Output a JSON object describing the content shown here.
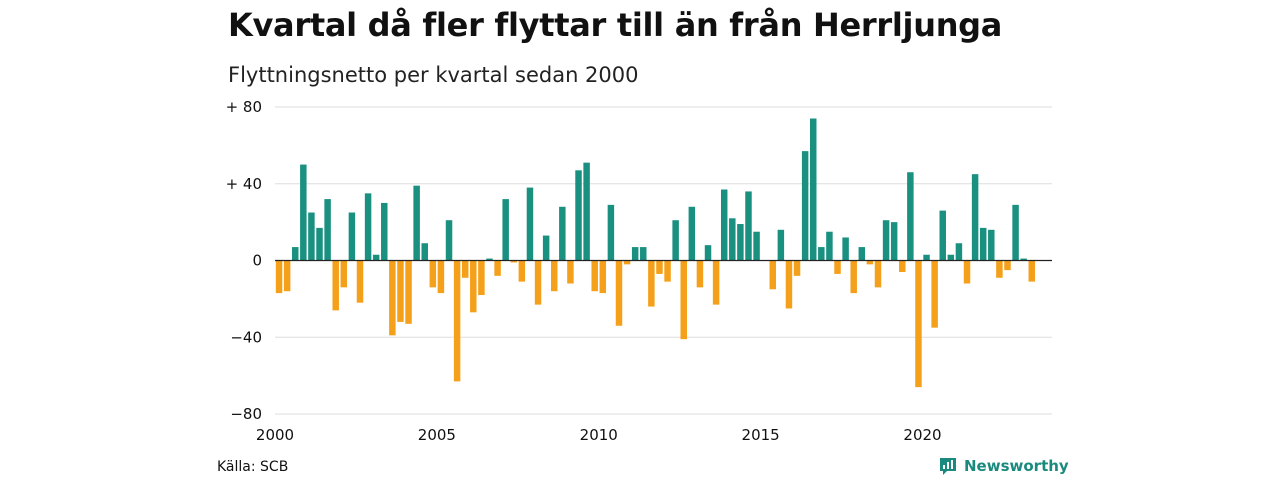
{
  "title": "Kvartal då fler flyttar till än från Herrljunga",
  "subtitle": "Flyttningsnetto per kvartal sedan 2000",
  "source": "Källa: SCB",
  "brand": "Newsworthy",
  "colors": {
    "positive": "#1a9081",
    "negative": "#f5a01a",
    "grid": "#dddddd",
    "zero_line": "#222222",
    "brand": "#1a8a7e"
  },
  "chart_data": {
    "type": "bar",
    "title": "Kvartal då fler flyttar till än från Herrljunga",
    "subtitle": "Flyttningsnetto per kvartal sedan 2000",
    "xlabel": "",
    "ylabel": "",
    "grid": true,
    "ylim": [
      -80,
      80
    ],
    "y_ticks": [
      80,
      40,
      0,
      -40,
      -80
    ],
    "y_tick_labels": [
      "+ 80",
      "+ 40",
      "0",
      "−40",
      "−80"
    ],
    "x_ticks": [
      2000,
      2005,
      2010,
      2015,
      2020
    ],
    "x_tick_labels": [
      "2000",
      "2005",
      "2010",
      "2015",
      "2020"
    ],
    "x_start_year": 2000,
    "periods_per_year": 4,
    "categories": [
      "2000 Q1",
      "2000 Q2",
      "2000 Q3",
      "2000 Q4",
      "2001 Q1",
      "2001 Q2",
      "2001 Q3",
      "2001 Q4",
      "2002 Q1",
      "2002 Q2",
      "2002 Q3",
      "2002 Q4",
      "2003 Q1",
      "2003 Q2",
      "2003 Q3",
      "2003 Q4",
      "2004 Q1",
      "2004 Q2",
      "2004 Q3",
      "2004 Q4",
      "2005 Q1",
      "2005 Q2",
      "2005 Q3",
      "2005 Q4",
      "2006 Q1",
      "2006 Q2",
      "2006 Q3",
      "2006 Q4",
      "2007 Q1",
      "2007 Q2",
      "2007 Q3",
      "2007 Q4",
      "2008 Q1",
      "2008 Q2",
      "2008 Q3",
      "2008 Q4",
      "2009 Q1",
      "2009 Q2",
      "2009 Q3",
      "2009 Q4",
      "2010 Q1",
      "2010 Q2",
      "2010 Q3",
      "2010 Q4",
      "2011 Q1",
      "2011 Q2",
      "2011 Q3",
      "2011 Q4",
      "2012 Q1",
      "2012 Q2",
      "2012 Q3",
      "2012 Q4",
      "2013 Q1",
      "2013 Q2",
      "2013 Q3",
      "2013 Q4",
      "2014 Q1",
      "2014 Q2",
      "2014 Q3",
      "2014 Q4",
      "2015 Q1",
      "2015 Q2",
      "2015 Q3",
      "2015 Q4",
      "2016 Q1",
      "2016 Q2",
      "2016 Q3",
      "2016 Q4",
      "2017 Q1",
      "2017 Q2",
      "2017 Q3",
      "2017 Q4",
      "2018 Q1",
      "2018 Q2",
      "2018 Q3",
      "2018 Q4",
      "2019 Q1",
      "2019 Q2",
      "2019 Q3",
      "2019 Q4",
      "2020 Q1",
      "2020 Q2",
      "2020 Q3",
      "2020 Q4",
      "2021 Q1",
      "2021 Q2",
      "2021 Q3",
      "2021 Q4",
      "2022 Q1",
      "2022 Q2",
      "2022 Q3",
      "2022 Q4",
      "2023 Q1",
      "2023 Q2",
      "2023 Q3",
      "2023 Q4"
    ],
    "values": [
      -17,
      -16,
      7,
      50,
      25,
      17,
      32,
      -26,
      -14,
      25,
      -22,
      35,
      3,
      30,
      -39,
      -32,
      -33,
      39,
      9,
      -14,
      -17,
      21,
      -63,
      -9,
      -27,
      -18,
      1,
      -8,
      32,
      -1,
      -11,
      38,
      -23,
      13,
      -16,
      28,
      -12,
      47,
      51,
      -16,
      -17,
      29,
      -34,
      -2,
      7,
      7,
      -24,
      -7,
      -11,
      21,
      -41,
      28,
      -14,
      8,
      -23,
      37,
      22,
      19,
      36,
      15,
      0,
      -15,
      16,
      -25,
      -8,
      57,
      74,
      7,
      15,
      -7,
      12,
      -17,
      7,
      -2,
      -14,
      21,
      20,
      -6,
      46,
      -66,
      3,
      -35,
      26,
      3,
      9,
      -12,
      45,
      17,
      16,
      -9,
      -5,
      29,
      1,
      -11,
      0,
      0
    ]
  }
}
